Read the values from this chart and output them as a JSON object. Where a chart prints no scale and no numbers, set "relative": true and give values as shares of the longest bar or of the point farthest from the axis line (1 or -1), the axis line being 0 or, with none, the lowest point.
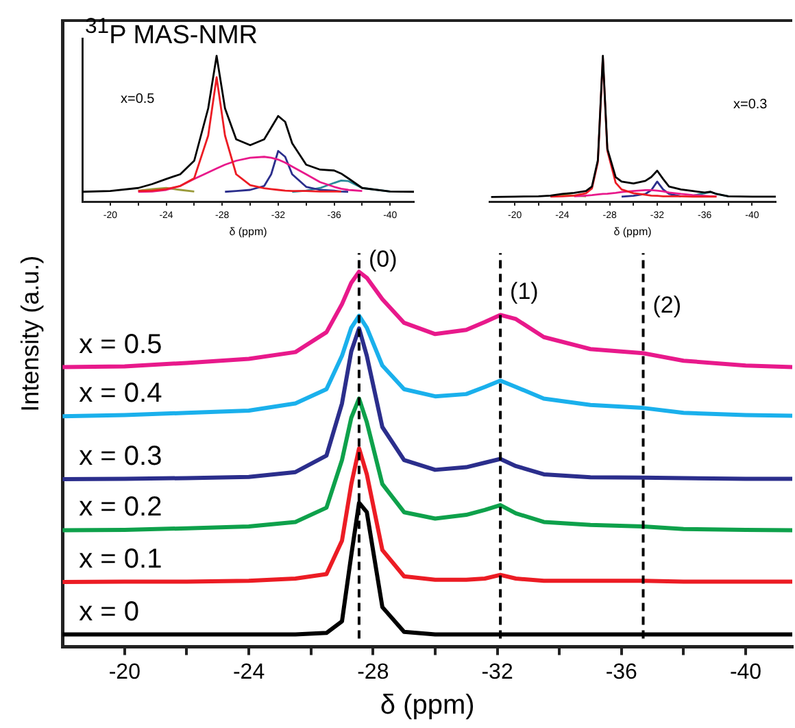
{
  "chart_data": [
    {
      "type": "line",
      "relative": true,
      "grid": false,
      "legend": false,
      "marker": "none",
      "tick_labels": "x",
      "xlabel": "δ (ppm)",
      "annotations": [
        "$^{31}$P MAS-NMR",
        "x=0.5"
      ],
      "xlim": [
        -18,
        -41.7
      ],
      "xticks": [
        -20,
        {
          "value": -22,
          "label": null
        },
        -24,
        {
          "value": -26,
          "label": null
        },
        -28,
        {
          "value": -30,
          "label": null
        },
        -32,
        {
          "value": -34,
          "label": null
        },
        -36,
        {
          "value": -38,
          "label": null
        },
        -40
      ],
      "x": [
        -18,
        -20,
        -22,
        -23,
        -24,
        -25,
        -26,
        -27,
        -27.6,
        -28.2,
        -29,
        -30,
        -31,
        -31.5,
        -32,
        -32.5,
        -33,
        -34,
        -35,
        -36,
        -36.5,
        -37,
        -38,
        -40,
        -41.7
      ],
      "series": [
        {
          "color": "#000000",
          "values": [
            0.067,
            0.072,
            0.093,
            0.12,
            0.155,
            0.187,
            0.28,
            0.64,
            1.0,
            0.64,
            0.427,
            0.387,
            0.427,
            0.507,
            0.587,
            0.547,
            0.4,
            0.253,
            0.219,
            0.213,
            0.192,
            0.16,
            0.093,
            0.069,
            0.067
          ]
        },
        {
          "color": "#ec1c24",
          "values": [
            null,
            null,
            0.072,
            0.075,
            0.085,
            0.107,
            0.16,
            0.453,
            0.853,
            0.453,
            0.187,
            0.112,
            0.091,
            0.085,
            0.08,
            0.075,
            0.072,
            0.072,
            0.069,
            0.069,
            0.069,
            null,
            null,
            null,
            null
          ]
        },
        {
          "color": "#e8198b",
          "values": [
            null,
            null,
            0.067,
            0.069,
            0.08,
            0.107,
            0.155,
            0.2,
            0.227,
            0.253,
            0.28,
            0.301,
            0.307,
            0.301,
            0.288,
            0.267,
            0.24,
            0.187,
            0.133,
            0.101,
            0.088,
            0.08,
            0.072,
            null,
            null
          ]
        },
        {
          "color": "#2b2e8c",
          "values": [
            null,
            null,
            null,
            null,
            null,
            null,
            null,
            null,
            null,
            0.067,
            0.072,
            0.08,
            0.107,
            0.187,
            0.347,
            0.307,
            0.187,
            0.101,
            0.08,
            0.075,
            0.069,
            0.067,
            null,
            null,
            null
          ]
        },
        {
          "color": "#2b8a9a",
          "values": [
            null,
            null,
            null,
            null,
            null,
            null,
            null,
            null,
            null,
            null,
            null,
            null,
            null,
            null,
            null,
            null,
            0.067,
            0.075,
            0.093,
            0.128,
            0.144,
            0.141,
            0.093,
            0.069,
            null
          ]
        },
        {
          "color": "#9a9a3a",
          "values": [
            null,
            null,
            0.075,
            0.085,
            0.093,
            0.08,
            0.069,
            null,
            null,
            null,
            null,
            null,
            null,
            null,
            null,
            null,
            null,
            null,
            null,
            null,
            null,
            null,
            null,
            null,
            null
          ]
        }
      ]
    },
    {
      "type": "line",
      "relative": true,
      "grid": false,
      "legend": false,
      "marker": "none",
      "tick_labels": "x",
      "xlabel": "δ (ppm)",
      "annotations": [
        "x=0.3"
      ],
      "xlim": [
        -17.85,
        -42
      ],
      "xticks": [
        -20,
        {
          "value": -22,
          "label": null
        },
        -24,
        {
          "value": -26,
          "label": null
        },
        -28,
        {
          "value": -30,
          "label": null
        },
        -32,
        {
          "value": -34,
          "label": null
        },
        -36,
        {
          "value": -38,
          "label": null
        },
        -40
      ],
      "x": [
        -18,
        -20,
        -22,
        -23,
        -24,
        -25,
        -26,
        -26.5,
        -27,
        -27.42,
        -27.8,
        -28.5,
        -29,
        -30,
        -31,
        -31.5,
        -32,
        -32.5,
        -33,
        -34,
        -35,
        -36,
        -36.5,
        -37,
        -38,
        -40,
        -42
      ],
      "series": [
        {
          "color": "#000000",
          "values": [
            0.031,
            0.034,
            0.036,
            0.041,
            0.052,
            0.059,
            0.072,
            0.103,
            0.284,
            1.0,
            0.362,
            0.168,
            0.137,
            0.124,
            0.142,
            0.168,
            0.212,
            0.155,
            0.103,
            0.083,
            0.072,
            0.062,
            0.067,
            0.052,
            0.036,
            0.034,
            0.034
          ]
        },
        {
          "color": "#ec1c24",
          "values": [
            null,
            null,
            null,
            0.034,
            0.036,
            0.041,
            0.057,
            0.09,
            0.271,
            0.987,
            0.349,
            0.129,
            0.083,
            0.057,
            0.047,
            0.041,
            0.039,
            0.036,
            0.036,
            0.036,
            0.034,
            0.034,
            0.034,
            0.034,
            null,
            null,
            null
          ]
        },
        {
          "color": "#e8198b",
          "values": [
            null,
            null,
            null,
            null,
            null,
            0.036,
            0.041,
            0.044,
            0.049,
            0.052,
            0.054,
            0.059,
            0.065,
            0.072,
            0.078,
            0.078,
            0.075,
            0.07,
            0.062,
            0.052,
            0.044,
            0.039,
            0.036,
            0.036,
            null,
            null,
            null
          ]
        },
        {
          "color": "#2b2e8c",
          "values": [
            null,
            null,
            null,
            null,
            null,
            null,
            null,
            null,
            null,
            null,
            null,
            null,
            0.034,
            0.039,
            0.052,
            0.078,
            0.137,
            0.083,
            0.052,
            0.036,
            null,
            null,
            null,
            null,
            null,
            null,
            null
          ]
        },
        {
          "color": "#2b8a9a",
          "values": [
            null,
            null,
            null,
            null,
            null,
            null,
            null,
            null,
            null,
            null,
            null,
            null,
            null,
            null,
            null,
            null,
            null,
            null,
            null,
            null,
            0.041,
            0.057,
            0.065,
            0.052,
            0.036,
            null,
            null
          ]
        },
        {
          "color": "#9a9a3a",
          "values": [
            null,
            null,
            null,
            0.039,
            0.047,
            0.041,
            0.036,
            null,
            null,
            null,
            null,
            null,
            null,
            null,
            null,
            null,
            null,
            null,
            null,
            null,
            null,
            null,
            null,
            null,
            null,
            null,
            null
          ]
        }
      ]
    },
    {
      "type": "line",
      "relative": true,
      "grid": false,
      "legend": false,
      "marker": "none",
      "tick_labels": "x",
      "xlabel": "δ (ppm)",
      "ylabel": "Intensity (a.u.)",
      "xlim": [
        -18,
        -41.5
      ],
      "xticks": [
        -20,
        {
          "value": -22,
          "label": null
        },
        -24,
        {
          "value": -26,
          "label": null
        },
        -28,
        {
          "value": -30,
          "label": null
        },
        -32,
        {
          "value": -34,
          "label": null
        },
        -36,
        {
          "value": -38,
          "label": null
        },
        -40
      ],
      "ref_lines": [
        {
          "axis": "x",
          "value": -27.55,
          "color": "#000000",
          "line_style": "dashed"
        },
        {
          "axis": "x",
          "value": -32.1,
          "color": "#000000",
          "line_style": "dashed"
        },
        {
          "axis": "x",
          "value": -36.7,
          "color": "#000000",
          "line_style": "dashed"
        }
      ],
      "annotations": [
        {
          "text": "(0)",
          "x": -27.55,
          "y": 1.03
        },
        {
          "text": "(1)",
          "x": -32.1,
          "y": 0.945
        },
        {
          "text": "(2)",
          "x": -36.7,
          "y": 0.908
        }
      ],
      "x": [
        -18,
        -20,
        -22,
        -24,
        -25.5,
        -26.5,
        -27,
        -27.3,
        -27.55,
        -27.8,
        -28.3,
        -29,
        -30,
        -31,
        -31.6,
        -32.1,
        -32.6,
        -33.5,
        -35,
        -36.7,
        -38,
        -40,
        -41.5
      ],
      "series": [
        {
          "name": "x = 0.5",
          "color": "#e8198b",
          "values": [
            0.746,
            0.748,
            0.757,
            0.768,
            0.786,
            0.839,
            0.914,
            0.971,
            1.0,
            0.984,
            0.927,
            0.864,
            0.834,
            0.845,
            0.866,
            0.885,
            0.874,
            0.826,
            0.794,
            0.783,
            0.763,
            0.75,
            0.746
          ]
        },
        {
          "name": "x = 0.4",
          "color": "#1ab0ec",
          "values": [
            0.615,
            0.618,
            0.624,
            0.63,
            0.649,
            0.687,
            0.776,
            0.851,
            0.883,
            0.851,
            0.75,
            0.687,
            0.668,
            0.674,
            0.693,
            0.71,
            0.693,
            0.662,
            0.645,
            0.637,
            0.624,
            0.618,
            0.616
          ]
        },
        {
          "name": "x = 0.3",
          "color": "#2b2e8c",
          "values": [
            0.447,
            0.448,
            0.45,
            0.453,
            0.466,
            0.51,
            0.649,
            0.788,
            0.849,
            0.776,
            0.586,
            0.498,
            0.472,
            0.479,
            0.491,
            0.501,
            0.482,
            0.46,
            0.452,
            0.451,
            0.45,
            0.448,
            0.448
          ]
        },
        {
          "name": "x = 0.2",
          "color": "#0ea14b",
          "values": [
            0.311,
            0.312,
            0.316,
            0.321,
            0.333,
            0.371,
            0.498,
            0.611,
            0.662,
            0.599,
            0.434,
            0.359,
            0.342,
            0.352,
            0.365,
            0.378,
            0.356,
            0.333,
            0.325,
            0.321,
            0.314,
            0.312,
            0.311
          ]
        },
        {
          "name": "x = 0.1",
          "color": "#ec1c24",
          "values": [
            0.173,
            0.174,
            0.174,
            0.176,
            0.182,
            0.194,
            0.283,
            0.434,
            0.529,
            0.46,
            0.258,
            0.188,
            0.179,
            0.179,
            0.182,
            0.192,
            0.182,
            0.176,
            0.176,
            0.176,
            0.174,
            0.174,
            0.174
          ]
        },
        {
          "name": "x = 0",
          "color": "#000000",
          "values": [
            0.033,
            0.033,
            0.033,
            0.033,
            0.033,
            0.037,
            0.068,
            0.245,
            0.384,
            0.359,
            0.106,
            0.04,
            0.033,
            0.033,
            0.033,
            0.033,
            0.033,
            0.033,
            0.033,
            0.033,
            0.033,
            0.033,
            0.033
          ]
        }
      ]
    }
  ]
}
